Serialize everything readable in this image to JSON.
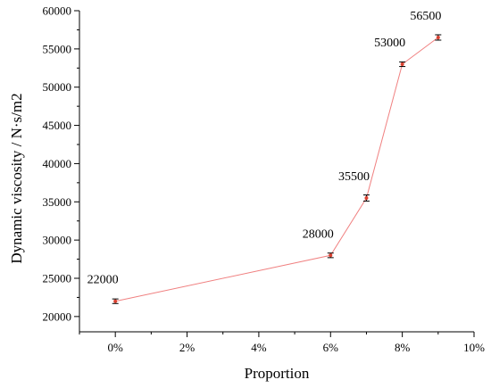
{
  "chart_data": {
    "type": "line",
    "title": "",
    "xlabel": "Proportion",
    "ylabel": "Dynamic viscosity / N·s/m2",
    "xlim": [
      -1,
      10
    ],
    "ylim": [
      18000,
      60000
    ],
    "x_ticks": [
      0,
      2,
      4,
      6,
      8,
      10
    ],
    "x_tick_labels": [
      "0%",
      "2%",
      "4%",
      "6%",
      "8%",
      "10%"
    ],
    "y_ticks": [
      20000,
      25000,
      30000,
      35000,
      40000,
      45000,
      50000,
      55000,
      60000
    ],
    "y_tick_labels": [
      "20000",
      "25000",
      "30000",
      "35000",
      "40000",
      "45000",
      "50000",
      "55000",
      "60000"
    ],
    "grid": false,
    "series": [
      {
        "color": "#f08080",
        "marker_color": "#d9402f",
        "error_bar_color": "#000000",
        "points": [
          {
            "x": 0,
            "y": 22000,
            "err": 300,
            "label": "22000"
          },
          {
            "x": 6,
            "y": 28000,
            "err": 300,
            "label": "28000"
          },
          {
            "x": 7,
            "y": 35500,
            "err": 400,
            "label": "35500"
          },
          {
            "x": 8,
            "y": 53000,
            "err": 300,
            "label": "53000"
          },
          {
            "x": 9,
            "y": 56500,
            "err": 350,
            "label": "56500"
          }
        ]
      }
    ]
  }
}
